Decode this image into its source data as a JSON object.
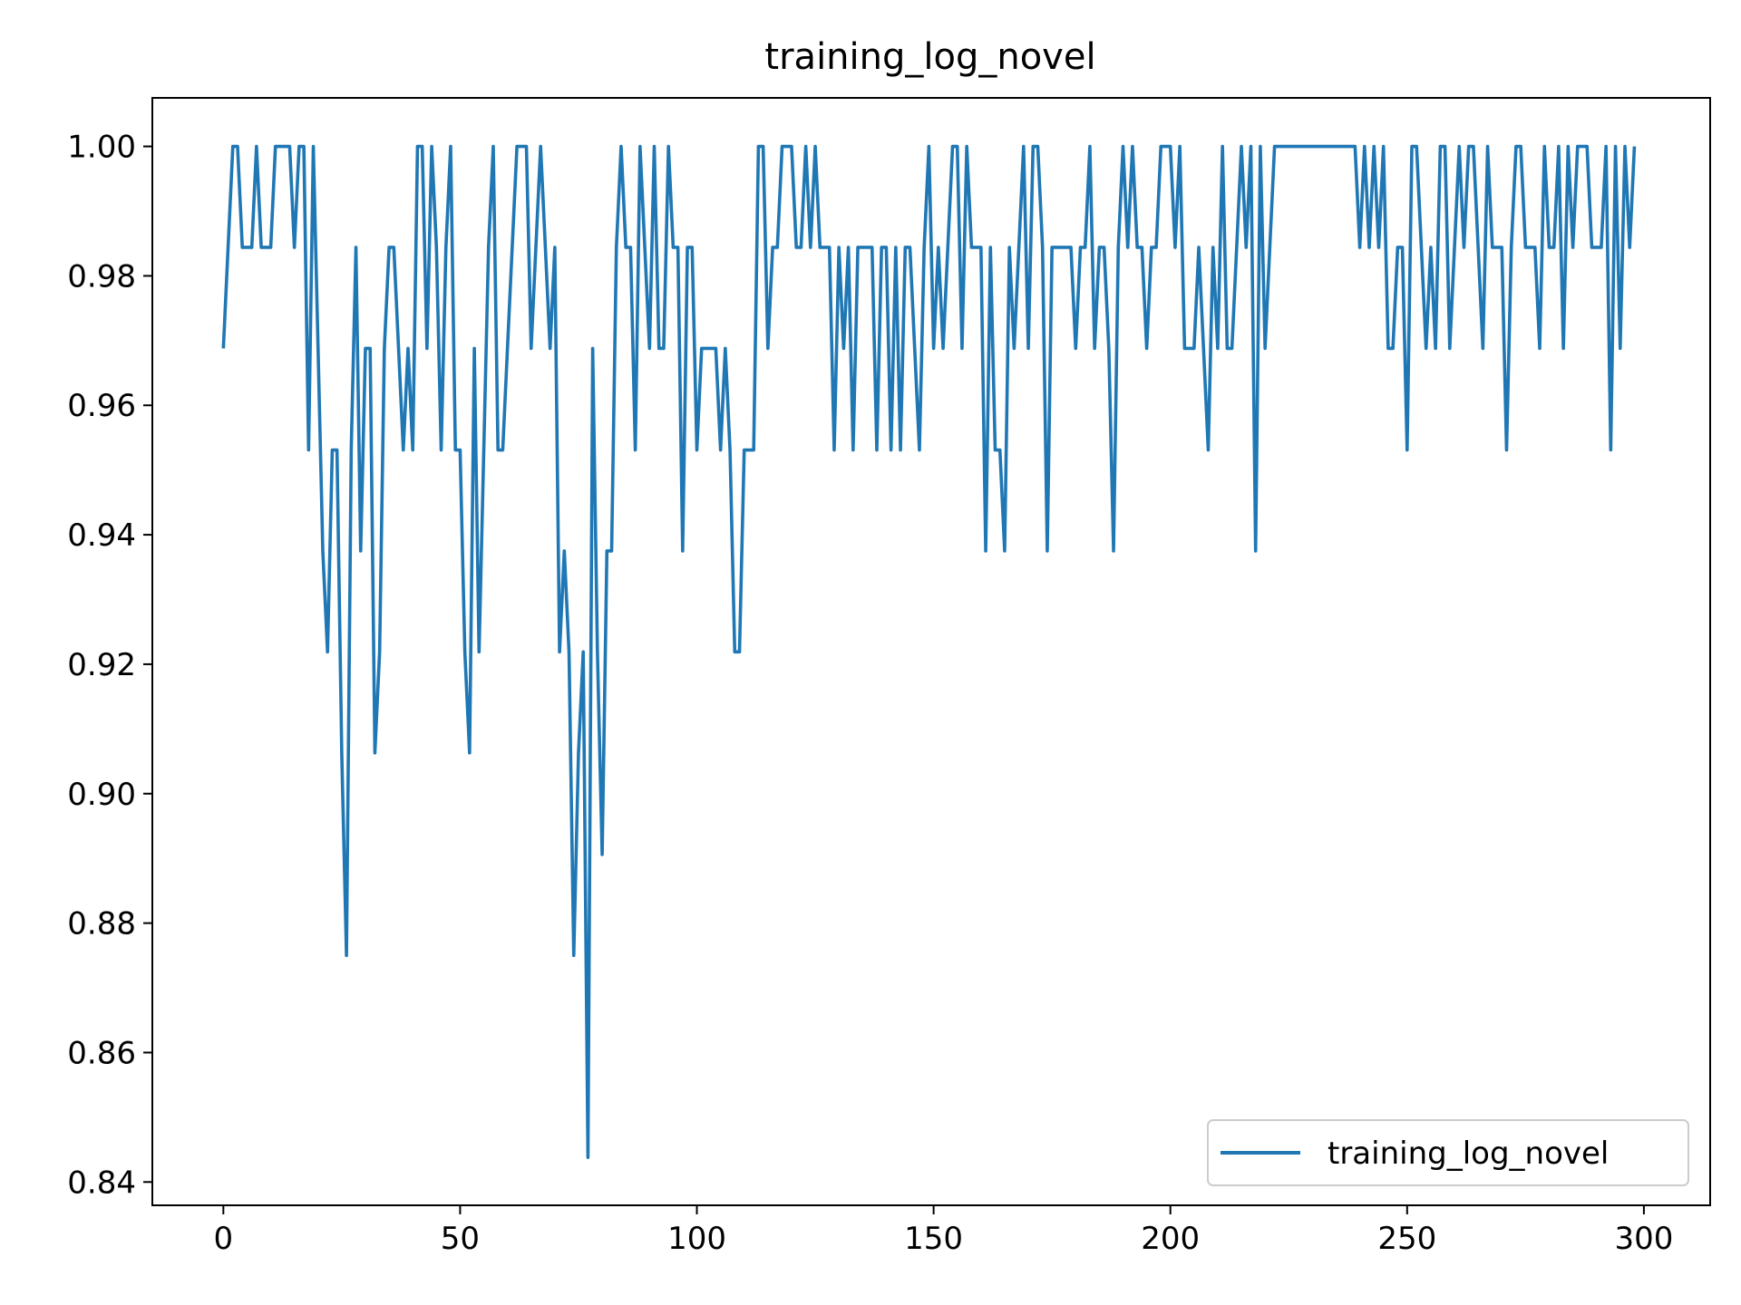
{
  "chart_data": {
    "type": "line",
    "title": "training_log_novel",
    "xlabel": "",
    "ylabel": "",
    "xlim": [
      -15,
      314
    ],
    "ylim": [
      0.8364,
      1.0075
    ],
    "xticks": [
      0,
      50,
      100,
      150,
      200,
      250,
      300
    ],
    "xtick_labels": [
      "0",
      "50",
      "100",
      "150",
      "200",
      "250",
      "300"
    ],
    "yticks": [
      0.84,
      0.86,
      0.88,
      0.9,
      0.92,
      0.94,
      0.96,
      0.98,
      1.0
    ],
    "ytick_labels": [
      "0.84",
      "0.86",
      "0.88",
      "0.90",
      "0.92",
      "0.94",
      "0.96",
      "0.98",
      "1.00"
    ],
    "grid": false,
    "legend_position": "lower-right",
    "series": [
      {
        "name": "training_log_novel",
        "color": "#1f77b4",
        "x_start": 0,
        "x_step": 1,
        "values": [
          0.9688,
          0.9844,
          1.0,
          1.0,
          0.9844,
          0.9844,
          0.9844,
          1.0,
          0.9844,
          0.9844,
          0.9844,
          1.0,
          1.0,
          1.0,
          1.0,
          0.9844,
          1.0,
          1.0,
          0.9531,
          1.0,
          0.9688,
          0.9375,
          0.9219,
          0.9531,
          0.9531,
          0.9063,
          0.875,
          0.9531,
          0.9844,
          0.9375,
          0.9688,
          0.9688,
          0.9063,
          0.9219,
          0.9688,
          0.9844,
          0.9844,
          0.9688,
          0.9531,
          0.9688,
          0.9531,
          1.0,
          1.0,
          0.9688,
          1.0,
          0.9844,
          0.9531,
          0.9844,
          1.0,
          0.9531,
          0.9531,
          0.9219,
          0.9063,
          0.9688,
          0.9219,
          0.9531,
          0.9844,
          1.0,
          0.9531,
          0.9531,
          0.9688,
          0.9844,
          1.0,
          1.0,
          1.0,
          0.9688,
          0.9844,
          1.0,
          0.9844,
          0.9688,
          0.9844,
          0.9219,
          0.9375,
          0.9219,
          0.875,
          0.9063,
          0.9219,
          0.8438,
          0.9688,
          0.9219,
          0.8906,
          0.9375,
          0.9375,
          0.9844,
          1.0,
          0.9844,
          0.9844,
          0.9531,
          1.0,
          0.9844,
          0.9688,
          1.0,
          0.9688,
          0.9688,
          1.0,
          0.9844,
          0.9844,
          0.9375,
          0.9844,
          0.9844,
          0.9531,
          0.9688,
          0.9688,
          0.9688,
          0.9688,
          0.9531,
          0.9688,
          0.9531,
          0.9219,
          0.9219,
          0.9531,
          0.9531,
          0.9531,
          1.0,
          1.0,
          0.9688,
          0.9844,
          0.9844,
          1.0,
          1.0,
          1.0,
          0.9844,
          0.9844,
          1.0,
          0.9844,
          1.0,
          0.9844,
          0.9844,
          0.9844,
          0.9531,
          0.9844,
          0.9688,
          0.9844,
          0.9531,
          0.9844,
          0.9844,
          0.9844,
          0.9844,
          0.9531,
          0.9844,
          0.9844,
          0.9531,
          0.9844,
          0.9531,
          0.9844,
          0.9844,
          0.9688,
          0.9531,
          0.9844,
          1.0,
          0.9688,
          0.9844,
          0.9688,
          0.9844,
          1.0,
          1.0,
          0.9688,
          1.0,
          0.9844,
          0.9844,
          0.9844,
          0.9375,
          0.9844,
          0.9531,
          0.9531,
          0.9375,
          0.9844,
          0.9688,
          0.9844,
          1.0,
          0.9688,
          1.0,
          1.0,
          0.9844,
          0.9375,
          0.9844,
          0.9844,
          0.9844,
          0.9844,
          0.9844,
          0.9688,
          0.9844,
          0.9844,
          1.0,
          0.9688,
          0.9844,
          0.9844,
          0.9688,
          0.9375,
          0.9844,
          1.0,
          0.9844,
          1.0,
          0.9844,
          0.9844,
          0.9688,
          0.9844,
          0.9844,
          1.0,
          1.0,
          1.0,
          0.9844,
          1.0,
          0.9688,
          0.9688,
          0.9688,
          0.9844,
          0.9688,
          0.9531,
          0.9844,
          0.9688,
          1.0,
          0.9688,
          0.9688,
          0.9844,
          1.0,
          0.9844,
          1.0,
          0.9375,
          1.0,
          0.9688,
          0.9844,
          1.0,
          1.0,
          1.0,
          1.0,
          1.0,
          1.0,
          1.0,
          1.0,
          1.0,
          1.0,
          1.0,
          1.0,
          1.0,
          1.0,
          1.0,
          1.0,
          1.0,
          1.0,
          0.9844,
          1.0,
          0.9844,
          1.0,
          0.9844,
          1.0,
          0.9688,
          0.9688,
          0.9844,
          0.9844,
          0.9531,
          1.0,
          1.0,
          0.9844,
          0.9688,
          0.9844,
          0.9688,
          1.0,
          1.0,
          0.9688,
          0.9844,
          1.0,
          0.9844,
          1.0,
          1.0,
          0.9844,
          0.9688,
          1.0,
          0.9844,
          0.9844,
          0.9844,
          0.9531,
          0.9844,
          1.0,
          1.0,
          0.9844,
          0.9844,
          0.9844,
          0.9688,
          1.0,
          0.9844,
          0.9844,
          1.0,
          0.9688,
          1.0,
          0.9844,
          1.0,
          1.0,
          1.0,
          0.9844,
          0.9844,
          0.9844,
          1.0,
          0.9531,
          1.0,
          0.9688,
          1.0,
          0.9844,
          1.0
        ]
      }
    ]
  }
}
